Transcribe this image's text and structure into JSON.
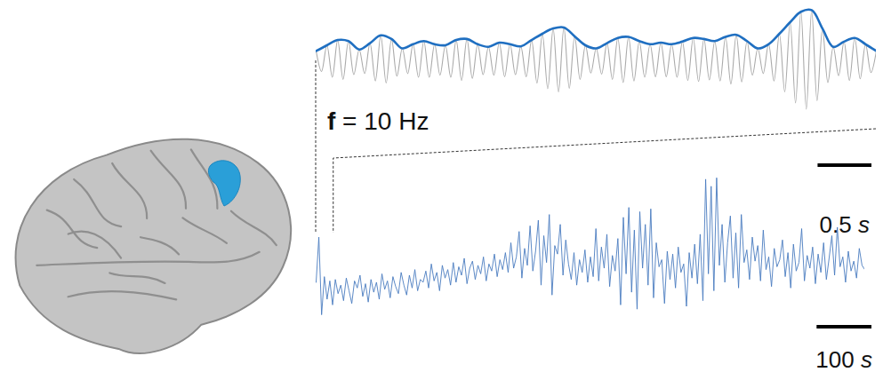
{
  "chart_data": [
    {
      "type": "line",
      "annotation": {
        "symbol": "f",
        "text": "= 10 Hz"
      },
      "xlim": [
        0,
        5.2
      ],
      "ylim": [
        -1,
        1
      ],
      "tick_labels": false,
      "grid": false,
      "scale_bar": {
        "value": 0.5,
        "unit": "s"
      },
      "series": [
        {
          "color": "#aaaaaa",
          "x": [
            0,
            0.05,
            0.1,
            0.15,
            0.2,
            0.25,
            0.3,
            0.35,
            0.4,
            0.45,
            0.5,
            0.55,
            0.6,
            0.65,
            0.7,
            0.75,
            0.8,
            0.85,
            0.9,
            0.95,
            1,
            1.05,
            1.1,
            1.15,
            1.2,
            1.25,
            1.3,
            1.35,
            1.4,
            1.45,
            1.5,
            1.55,
            1.6,
            1.65,
            1.7,
            1.75,
            1.8,
            1.85,
            1.9,
            1.95,
            2,
            2.05,
            2.1,
            2.15,
            2.2,
            2.25,
            2.3,
            2.35,
            2.4,
            2.45,
            2.5,
            2.55,
            2.6,
            2.65,
            2.7,
            2.75,
            2.8,
            2.85,
            2.9,
            2.95,
            3,
            3.05,
            3.1,
            3.15,
            3.2,
            3.25,
            3.3,
            3.35,
            3.4,
            3.45,
            3.5,
            3.55,
            3.6,
            3.65,
            3.7,
            3.75,
            3.8,
            3.85,
            3.9,
            3.95,
            4,
            4.05,
            4.1,
            4.15,
            4.2,
            4.25,
            4.3,
            4.35,
            4.4,
            4.45,
            4.5,
            4.55,
            4.6,
            4.65,
            4.7,
            4.75,
            4.8,
            4.85,
            4.9,
            4.95,
            5,
            5.05,
            5.1,
            5.15,
            5.2
          ],
          "values": [
            0.17,
            -0.22,
            0.28,
            -0.33,
            0.38,
            -0.37,
            0.36,
            -0.28,
            0.2,
            -0.26,
            0.32,
            -0.4,
            0.47,
            -0.44,
            0.4,
            -0.31,
            0.22,
            -0.26,
            0.3,
            -0.33,
            0.36,
            -0.33,
            0.3,
            -0.29,
            0.28,
            -0.33,
            0.38,
            -0.39,
            0.4,
            -0.35,
            0.3,
            -0.28,
            0.25,
            -0.29,
            0.33,
            -0.32,
            0.3,
            -0.28,
            0.26,
            -0.32,
            0.38,
            -0.44,
            0.5,
            -0.55,
            0.6,
            -0.61,
            0.62,
            -0.54,
            0.45,
            -0.37,
            0.28,
            -0.25,
            0.22,
            -0.27,
            0.32,
            -0.37,
            0.42,
            -0.43,
            0.44,
            -0.4,
            0.36,
            -0.33,
            0.3,
            -0.32,
            0.33,
            -0.32,
            0.3,
            -0.33,
            0.35,
            -0.39,
            0.42,
            -0.41,
            0.4,
            -0.38,
            0.36,
            -0.4,
            0.44,
            -0.46,
            0.48,
            -0.42,
            0.36,
            -0.29,
            0.22,
            -0.26,
            0.3,
            -0.4,
            0.5,
            -0.61,
            0.72,
            -0.82,
            0.92,
            -0.94,
            0.95,
            -0.78,
            0.6,
            -0.43,
            0.25,
            -0.3,
            0.35,
            -0.39,
            0.42,
            -0.36,
            0.3,
            -0.24,
            0.17
          ]
        },
        {
          "color": "#1f6fc1",
          "x": [
            0,
            0.1,
            0.2,
            0.3,
            0.4,
            0.5,
            0.6,
            0.7,
            0.8,
            0.9,
            1,
            1.1,
            1.2,
            1.3,
            1.4,
            1.5,
            1.6,
            1.7,
            1.8,
            1.9,
            2,
            2.1,
            2.2,
            2.3,
            2.4,
            2.5,
            2.6,
            2.7,
            2.8,
            2.9,
            3,
            3.1,
            3.2,
            3.3,
            3.4,
            3.5,
            3.6,
            3.7,
            3.8,
            3.9,
            4,
            4.1,
            4.2,
            4.3,
            4.4,
            4.5,
            4.6,
            4.7,
            4.8,
            4.9,
            5,
            5.1,
            5.2
          ],
          "values": [
            0.17,
            0.28,
            0.38,
            0.36,
            0.2,
            0.32,
            0.47,
            0.4,
            0.22,
            0.3,
            0.36,
            0.3,
            0.28,
            0.38,
            0.4,
            0.3,
            0.25,
            0.33,
            0.3,
            0.26,
            0.38,
            0.5,
            0.6,
            0.62,
            0.45,
            0.28,
            0.22,
            0.32,
            0.42,
            0.44,
            0.36,
            0.3,
            0.33,
            0.3,
            0.35,
            0.42,
            0.4,
            0.36,
            0.44,
            0.48,
            0.36,
            0.22,
            0.3,
            0.5,
            0.72,
            0.92,
            0.95,
            0.6,
            0.25,
            0.35,
            0.42,
            0.3,
            0.17
          ]
        }
      ]
    },
    {
      "type": "line",
      "xlim": [
        0,
        1000
      ],
      "ylim": [
        0,
        10.5
      ],
      "tick_labels": false,
      "grid": false,
      "color": "#4a7cc0",
      "scale_bar": {
        "value": 100,
        "unit": "s"
      },
      "zoom_xlim": [
        0,
        32
      ],
      "x": [
        0,
        5,
        10,
        15,
        20,
        25,
        30,
        35,
        40,
        45,
        50,
        55,
        60,
        65,
        70,
        75,
        80,
        85,
        90,
        95,
        100,
        105,
        110,
        115,
        120,
        125,
        130,
        135,
        140,
        145,
        150,
        155,
        160,
        165,
        170,
        175,
        180,
        185,
        190,
        195,
        200,
        205,
        210,
        215,
        220,
        225,
        230,
        235,
        240,
        245,
        250,
        255,
        260,
        265,
        270,
        275,
        280,
        285,
        290,
        295,
        300,
        305,
        310,
        315,
        320,
        325,
        330,
        335,
        340,
        345,
        350,
        355,
        360,
        365,
        370,
        375,
        380,
        385,
        390,
        395,
        400,
        405,
        410,
        415,
        420,
        425,
        430,
        435,
        440,
        445,
        450,
        455,
        460,
        465,
        470,
        475,
        480,
        485,
        490,
        495,
        500,
        505,
        510,
        515,
        520,
        525,
        530,
        535,
        540,
        545,
        550,
        555,
        560,
        565,
        570,
        575,
        580,
        585,
        590,
        595,
        600,
        605,
        610,
        615,
        620,
        625,
        630,
        635,
        640,
        645,
        650,
        655,
        660,
        665,
        670,
        675,
        680,
        685,
        690,
        695,
        700,
        705,
        710,
        715,
        720,
        725,
        730,
        735,
        740,
        745,
        750,
        755,
        760,
        765,
        770,
        775,
        780,
        785,
        790,
        795,
        800,
        805,
        810,
        815,
        820,
        825,
        830,
        835,
        840,
        845,
        850,
        855,
        860,
        865,
        870,
        875,
        880,
        885,
        890,
        895,
        900,
        905,
        910,
        915,
        920,
        925,
        930,
        935,
        940,
        945,
        950,
        955,
        960,
        965,
        970,
        975,
        980,
        985,
        990,
        995,
        1000
      ],
      "values": [
        2.8,
        6.0,
        0.5,
        3.2,
        1.6,
        2.9,
        1.2,
        3.0,
        2.0,
        2.6,
        1.5,
        3.1,
        2.2,
        1.3,
        2.9,
        2.4,
        3.3,
        1.8,
        2.7,
        1.4,
        3.0,
        2.1,
        2.8,
        1.6,
        3.4,
        2.3,
        2.9,
        1.7,
        3.2,
        2.5,
        2.0,
        3.5,
        2.6,
        1.9,
        3.3,
        2.4,
        3.7,
        2.2,
        3.0,
        2.8,
        3.6,
        2.4,
        4.1,
        2.9,
        3.5,
        2.2,
        4.0,
        3.1,
        3.7,
        2.6,
        4.2,
        2.8,
        3.9,
        3.3,
        4.5,
        2.7,
        3.8,
        4.3,
        3.0,
        4.0,
        3.4,
        4.6,
        2.9,
        4.1,
        3.6,
        4.8,
        3.2,
        4.4,
        3.7,
        4.9,
        3.5,
        5.6,
        3.8,
        4.6,
        6.4,
        3.1,
        5.2,
        4.0,
        6.8,
        3.6,
        5.0,
        7.2,
        2.6,
        6.1,
        4.2,
        7.6,
        1.9,
        5.4,
        4.8,
        6.9,
        3.3,
        5.8,
        4.1,
        3.0,
        4.9,
        2.6,
        4.4,
        3.5,
        5.1,
        2.8,
        4.6,
        3.2,
        6.6,
        2.9,
        5.3,
        3.8,
        6.2,
        2.5,
        4.7,
        3.6,
        5.9,
        1.2,
        7.4,
        3.4,
        8.1,
        2.1,
        6.5,
        0.9,
        7.8,
        3.8,
        6.9,
        2.6,
        8.0,
        1.7,
        5.6,
        3.9,
        4.4,
        1.3,
        5.0,
        3.0,
        4.8,
        2.4,
        5.3,
        3.5,
        4.1,
        1.1,
        4.9,
        3.1,
        5.5,
        2.7,
        6.2,
        1.5,
        10.1,
        3.4,
        9.6,
        2.2,
        10.2,
        4.0,
        6.9,
        2.8,
        5.6,
        7.5,
        3.1,
        6.3,
        2.4,
        7.6,
        4.2,
        5.1,
        3.0,
        6.0,
        4.3,
        5.4,
        2.9,
        6.5,
        3.7,
        4.6,
        2.5,
        5.2,
        3.9,
        4.4,
        5.8,
        3.2,
        4.9,
        2.4,
        5.5,
        3.6,
        4.2,
        6.6,
        2.9,
        4.7,
        3.8,
        5.3,
        2.7,
        4.8,
        3.5,
        5.6,
        3.0,
        4.5,
        6.1,
        3.3,
        6.7,
        3.9,
        4.6,
        2.8,
        5.0,
        3.6,
        4.3,
        3.1,
        5.2,
        4.0,
        3.7
      ]
    }
  ]
}
